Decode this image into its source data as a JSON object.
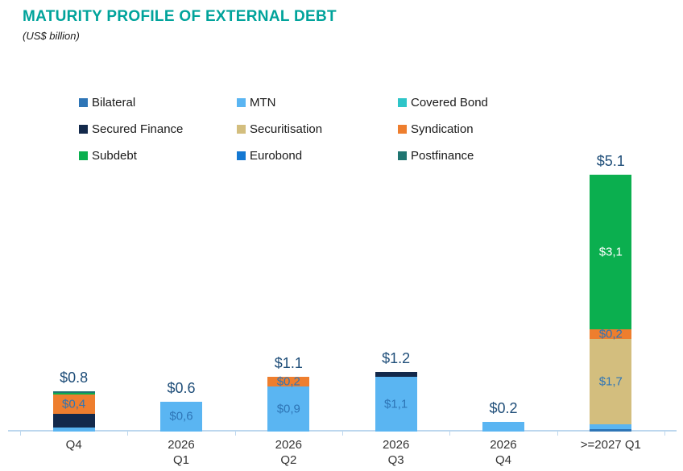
{
  "header": {
    "title": "MATURITY PROFILE OF EXTERNAL DEBT",
    "subtitle": "(US$ billion)"
  },
  "colors": {
    "title": "#00A39B",
    "subtitle": "#1A1A1A",
    "total_label": "#1F4E79",
    "segment_label": "#2E75B6",
    "axis_line": "#BDD7EE",
    "tick_label": "#333333",
    "background": "#FFFFFF"
  },
  "chart_data": {
    "type": "bar",
    "stacked": true,
    "unit": "US$ billion",
    "title": "MATURITY PROFILE OF EXTERNAL DEBT",
    "legend_position": "top",
    "grid": false,
    "value_axis_visible": false,
    "series_legend": [
      {
        "name": "Bilateral",
        "color": "#2E75B6"
      },
      {
        "name": "MTN",
        "color": "#5AB5F2"
      },
      {
        "name": "Covered Bond",
        "color": "#2EC5C8"
      },
      {
        "name": "Secured Finance",
        "color": "#13294B"
      },
      {
        "name": "Securitisation",
        "color": "#D3BE7E"
      },
      {
        "name": "Syndication",
        "color": "#EE7E2E"
      },
      {
        "name": "Subdebt",
        "color": "#0BAF4F"
      },
      {
        "name": "Eurobond",
        "color": "#1478D2"
      },
      {
        "name": "Postfinance",
        "color": "#1F7571"
      }
    ],
    "categories": [
      {
        "label_lines": [
          "Q4"
        ],
        "total": 0.8,
        "total_label": "$0.8",
        "segments": [
          {
            "series": "MTN",
            "value": 0.08
          },
          {
            "series": "Secured Finance",
            "value": 0.27
          },
          {
            "series": "Syndication",
            "value": 0.4,
            "label": "$0,4"
          },
          {
            "series": "Subdebt",
            "value": 0.02
          },
          {
            "series": "Postfinance",
            "value": 0.03
          }
        ]
      },
      {
        "label_lines": [
          "2026",
          "Q1"
        ],
        "total": 0.6,
        "total_label": "$0.6",
        "segments": [
          {
            "series": "MTN",
            "value": 0.6,
            "label": "$0,6"
          }
        ]
      },
      {
        "label_lines": [
          "2026",
          "Q2"
        ],
        "total": 1.1,
        "total_label": "$1.1",
        "segments": [
          {
            "series": "MTN",
            "value": 0.9,
            "label": "$0,9"
          },
          {
            "series": "Syndication",
            "value": 0.2,
            "label": "$0,2"
          }
        ]
      },
      {
        "label_lines": [
          "2026",
          "Q3"
        ],
        "total": 1.2,
        "total_label": "$1.2",
        "segments": [
          {
            "series": "MTN",
            "value": 1.1,
            "label": "$1,1"
          },
          {
            "series": "Secured Finance",
            "value": 0.1
          }
        ]
      },
      {
        "label_lines": [
          "2026",
          "Q4"
        ],
        "total": 0.2,
        "total_label": "$0.2",
        "segments": [
          {
            "series": "MTN",
            "value": 0.2
          }
        ]
      },
      {
        "label_lines": [
          ">=2027 Q1"
        ],
        "total": 5.1,
        "total_label": "$5.1",
        "segments": [
          {
            "series": "Bilateral",
            "value": 0.05
          },
          {
            "series": "MTN",
            "value": 0.1
          },
          {
            "series": "Securitisation",
            "value": 1.7,
            "label": "$1,7"
          },
          {
            "series": "Syndication",
            "value": 0.2,
            "label": "$0,2"
          },
          {
            "series": "Subdebt",
            "value": 3.1,
            "label": "$3,1",
            "label_color": "#FFFFFF"
          }
        ]
      }
    ]
  }
}
